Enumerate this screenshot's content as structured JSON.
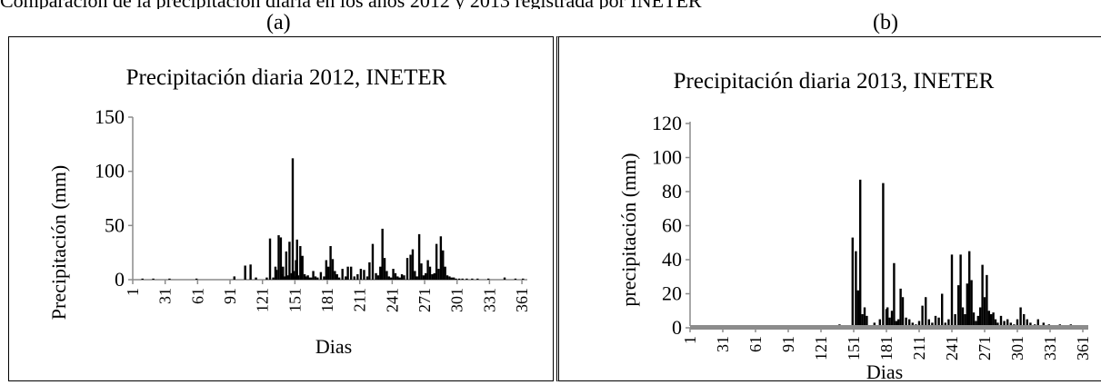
{
  "caption_fragment": "Comparación de la precipitación diaria en los años 2012 y 2013 registrada por INETER",
  "panels": {
    "a": "(a)",
    "b": "(b)"
  },
  "chart_data": [
    {
      "type": "bar",
      "title": "Precipitación diaria 2012, INETER",
      "xlabel": "Dias",
      "ylabel": "Precipitación (mm)",
      "ylim": [
        0,
        150
      ],
      "yticks": [
        0,
        50,
        100,
        150
      ],
      "xlim": [
        1,
        366
      ],
      "xticks": [
        1,
        31,
        61,
        91,
        121,
        151,
        181,
        211,
        241,
        271,
        301,
        331,
        361
      ],
      "grid": false,
      "legend": "none",
      "bar_color": "#000000",
      "days": [
        10,
        20,
        35,
        60,
        95,
        105,
        110,
        115,
        125,
        128,
        131,
        133,
        134,
        136,
        138,
        139,
        140,
        142,
        143,
        145,
        146,
        148,
        149,
        150,
        151,
        152,
        153,
        154,
        156,
        158,
        160,
        161,
        163,
        164,
        166,
        168,
        170,
        172,
        175,
        178,
        180,
        182,
        184,
        186,
        188,
        190,
        192,
        195,
        198,
        200,
        203,
        206,
        209,
        212,
        215,
        218,
        220,
        223,
        226,
        228,
        230,
        232,
        234,
        236,
        238,
        240,
        242,
        244,
        246,
        248,
        250,
        252,
        255,
        258,
        260,
        262,
        264,
        266,
        268,
        270,
        272,
        274,
        276,
        278,
        280,
        282,
        284,
        286,
        288,
        290,
        292,
        294,
        296,
        298,
        300,
        303,
        306,
        310,
        315,
        320,
        330,
        345,
        355,
        362
      ],
      "values": [
        1,
        1,
        1,
        1,
        3,
        13,
        14,
        2,
        2,
        38,
        2,
        12,
        9,
        41,
        39,
        5,
        12,
        3,
        26,
        4,
        35,
        6,
        112,
        8,
        3,
        18,
        37,
        4,
        31,
        22,
        5,
        3,
        4,
        2,
        2,
        8,
        3,
        2,
        7,
        3,
        18,
        12,
        31,
        19,
        8,
        5,
        2,
        10,
        3,
        12,
        12,
        3,
        5,
        10,
        9,
        3,
        16,
        33,
        6,
        4,
        12,
        47,
        20,
        8,
        3,
        2,
        10,
        6,
        3,
        2,
        5,
        4,
        20,
        23,
        28,
        8,
        3,
        42,
        15,
        4,
        6,
        18,
        12,
        5,
        6,
        33,
        10,
        40,
        27,
        12,
        4,
        3,
        2,
        2,
        1,
        1,
        1,
        1,
        1,
        1,
        1,
        2,
        1,
        1
      ]
    },
    {
      "type": "bar",
      "title": "Precipitación diaria 2013, INETER",
      "xlabel": "Dias",
      "ylabel": "precipitación (mm)",
      "ylim": [
        0,
        120
      ],
      "yticks": [
        0,
        20,
        40,
        60,
        80,
        100,
        120
      ],
      "xlim": [
        1,
        366
      ],
      "xticks": [
        1,
        31,
        61,
        91,
        121,
        151,
        181,
        211,
        241,
        271,
        301,
        331,
        361
      ],
      "grid": false,
      "legend": "none",
      "bar_color": "#000000",
      "baseline_band_color": "#8c8c8c",
      "days": [
        5,
        40,
        138,
        145,
        150,
        153,
        155,
        157,
        159,
        161,
        163,
        170,
        175,
        178,
        181,
        182,
        184,
        186,
        188,
        190,
        192,
        194,
        196,
        199,
        202,
        205,
        208,
        211,
        214,
        217,
        220,
        223,
        226,
        229,
        232,
        235,
        238,
        241,
        244,
        247,
        249,
        251,
        253,
        255,
        257,
        259,
        261,
        263,
        265,
        267,
        269,
        271,
        273,
        275,
        277,
        279,
        281,
        283,
        286,
        289,
        292,
        295,
        298,
        301,
        304,
        307,
        310,
        313,
        317,
        320,
        325,
        330,
        340,
        350
      ],
      "values": [
        1,
        1,
        2,
        1,
        53,
        45,
        22,
        87,
        8,
        12,
        7,
        3,
        5,
        85,
        11,
        12,
        6,
        10,
        38,
        4,
        5,
        23,
        18,
        6,
        5,
        3,
        2,
        4,
        13,
        18,
        5,
        3,
        7,
        6,
        20,
        3,
        5,
        43,
        8,
        25,
        43,
        12,
        8,
        26,
        45,
        28,
        9,
        4,
        7,
        12,
        37,
        18,
        31,
        10,
        8,
        9,
        5,
        3,
        7,
        4,
        5,
        3,
        2,
        5,
        12,
        8,
        5,
        3,
        2,
        5,
        3,
        2,
        2,
        2
      ]
    }
  ]
}
